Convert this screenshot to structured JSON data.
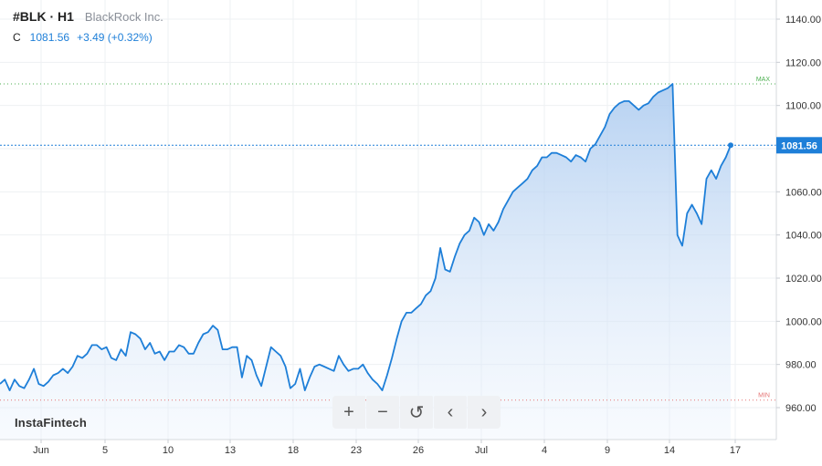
{
  "header": {
    "symbol": "#BLK · H1",
    "company": "BlackRock Inc.",
    "close_label": "C",
    "close_value": "1081.56",
    "change": "+3.49 (+0.32%)"
  },
  "logo": "InstaFintech",
  "toolbar": {
    "zoom_in": "+",
    "zoom_out": "−",
    "reset": "↺",
    "back": "‹",
    "forward": "›"
  },
  "colors": {
    "line": "#1e7fd8",
    "fill_top": "#a9c9ef",
    "max_line": "#4caf50",
    "min_line": "#e57373"
  },
  "chart_data": {
    "type": "area",
    "y_ticks": [
      "1140.00",
      "1120.00",
      "1100.00",
      "1080.00",
      "1060.00",
      "1040.00",
      "1020.00",
      "1000.00",
      "980.00",
      "960.00"
    ],
    "ylim": [
      955,
      1145
    ],
    "x_ticks": [
      "Jun",
      "5",
      "10",
      "13",
      "18",
      "23",
      "26",
      "Jul",
      "4",
      "9",
      "14",
      "17"
    ],
    "max": {
      "label": "MAX",
      "value": 1110
    },
    "min": {
      "label": "MIN",
      "value": 963.5
    },
    "last_price": {
      "label": "1081.56",
      "value": 1081.56
    },
    "values": [
      971,
      973,
      968,
      973,
      970,
      969,
      973,
      978,
      971,
      970,
      972,
      975,
      976,
      978,
      976,
      979,
      984,
      983,
      985,
      989,
      989,
      987,
      988,
      983,
      982,
      987,
      984,
      995,
      994,
      992,
      987,
      990,
      985,
      986,
      982,
      986,
      986,
      989,
      988,
      985,
      985,
      990,
      994,
      995,
      998,
      996,
      987,
      987,
      988,
      988,
      974,
      984,
      982,
      975,
      970,
      979,
      988,
      986,
      984,
      979,
      969,
      971,
      978,
      968,
      974,
      979,
      980,
      979,
      978,
      977,
      984,
      980,
      977,
      978,
      978,
      980,
      976,
      973,
      971,
      968,
      975,
      983,
      992,
      1000,
      1004,
      1004,
      1006,
      1008,
      1012,
      1014,
      1020,
      1034,
      1024,
      1023,
      1030,
      1036,
      1040,
      1042,
      1048,
      1046,
      1040,
      1045,
      1042,
      1046,
      1052,
      1056,
      1060,
      1062,
      1064,
      1066,
      1070,
      1072,
      1076,
      1076,
      1078,
      1078,
      1077,
      1076,
      1074,
      1077,
      1076,
      1074,
      1080,
      1082,
      1086,
      1090,
      1096,
      1099,
      1101,
      1102,
      1102,
      1100,
      1098,
      1100,
      1101,
      1104,
      1106,
      1107,
      1108,
      1110,
      1040,
      1035,
      1050,
      1054,
      1050,
      1045,
      1066,
      1070,
      1066,
      1072,
      1076,
      1081.56
    ]
  }
}
